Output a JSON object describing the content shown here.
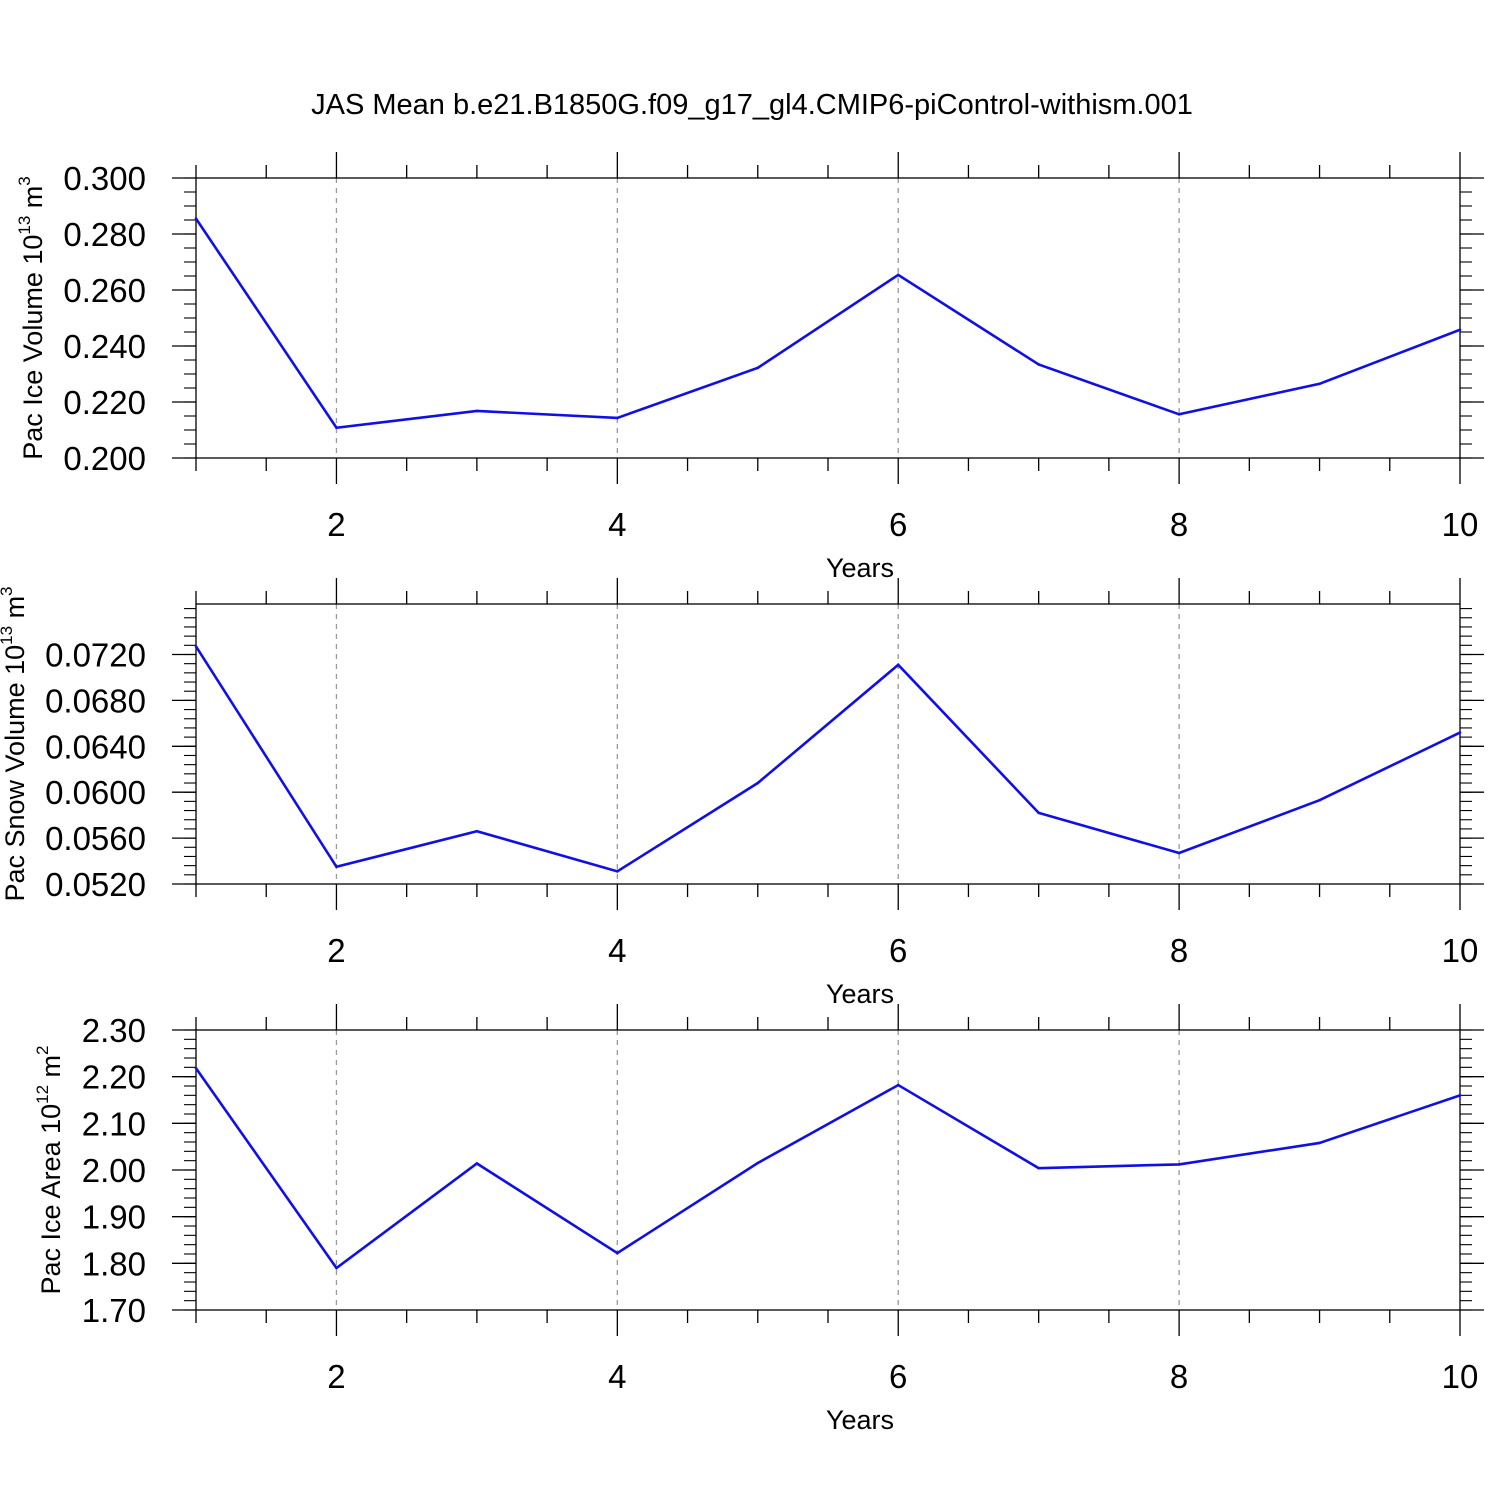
{
  "page": {
    "title": "JAS Mean b.e21.B1850G.f09_g17_gl4.CMIP6-piControl-withism.001"
  },
  "style": {
    "line_color": "#1010e6",
    "axis_color": "#000000",
    "grid_color": "#999999",
    "background": "#ffffff"
  },
  "chart_data": [
    {
      "type": "line",
      "title": "",
      "xlabel": "Years",
      "ylabel": {
        "main": "Pac Ice Volume 10",
        "exp": "13",
        "unit": " m",
        "unit_exp": "3"
      },
      "xlim": [
        1,
        10
      ],
      "ylim": [
        0.2,
        0.3
      ],
      "xticks": [
        2,
        4,
        6,
        8,
        10
      ],
      "xtick_labels": [
        "2",
        "4",
        "6",
        "8",
        "10"
      ],
      "yticks": [
        0.2,
        0.22,
        0.24,
        0.26,
        0.28,
        0.3
      ],
      "ytick_labels": [
        "0.200",
        "0.220",
        "0.240",
        "0.260",
        "0.280",
        "0.300"
      ],
      "y_minor_step": 0.005,
      "grid": "x-dashed",
      "series": [
        {
          "x": [
            1,
            2,
            3,
            4,
            5,
            6,
            7,
            8,
            9,
            10
          ],
          "values": [
            0.2855,
            0.2108,
            0.2168,
            0.2143,
            0.2322,
            0.2654,
            0.2334,
            0.2156,
            0.2265,
            0.2458
          ]
        }
      ]
    },
    {
      "type": "line",
      "title": "",
      "xlabel": "Years",
      "ylabel": {
        "main": "Pac Snow Volume 10",
        "exp": "13",
        "unit": " m",
        "unit_exp": "3"
      },
      "xlim": [
        1,
        10
      ],
      "ylim": [
        0.052,
        0.0764
      ],
      "xticks": [
        2,
        4,
        6,
        8,
        10
      ],
      "xtick_labels": [
        "2",
        "4",
        "6",
        "8",
        "10"
      ],
      "yticks": [
        0.052,
        0.056,
        0.06,
        0.064,
        0.068,
        0.072
      ],
      "ytick_labels": [
        "0.0520",
        "0.0560",
        "0.0600",
        "0.0640",
        "0.0680",
        "0.0720"
      ],
      "y_minor_step": 0.0008,
      "grid": "x-dashed",
      "series": [
        {
          "x": [
            1,
            2,
            3,
            4,
            5,
            6,
            7,
            8,
            9,
            10
          ],
          "values": [
            0.0727,
            0.0535,
            0.0566,
            0.0531,
            0.0608,
            0.0711,
            0.0582,
            0.0547,
            0.0593,
            0.0652
          ]
        }
      ]
    },
    {
      "type": "line",
      "title": "",
      "xlabel": "Years",
      "ylabel": {
        "main": "Pac Ice Area 10",
        "exp": "12",
        "unit": " m",
        "unit_exp": "2"
      },
      "xlim": [
        1,
        10
      ],
      "ylim": [
        1.7,
        2.3
      ],
      "xticks": [
        2,
        4,
        6,
        8,
        10
      ],
      "xtick_labels": [
        "2",
        "4",
        "6",
        "8",
        "10"
      ],
      "yticks": [
        1.7,
        1.8,
        1.9,
        2.0,
        2.1,
        2.2,
        2.3
      ],
      "ytick_labels": [
        "1.70",
        "1.80",
        "1.90",
        "2.00",
        "2.10",
        "2.20",
        "2.30"
      ],
      "y_minor_step": 0.02,
      "grid": "x-dashed",
      "series": [
        {
          "x": [
            1,
            2,
            3,
            4,
            5,
            6,
            7,
            8,
            9,
            10
          ],
          "values": [
            2.218,
            1.79,
            2.014,
            1.822,
            2.015,
            2.182,
            2.004,
            2.012,
            2.058,
            2.16
          ]
        }
      ]
    }
  ]
}
